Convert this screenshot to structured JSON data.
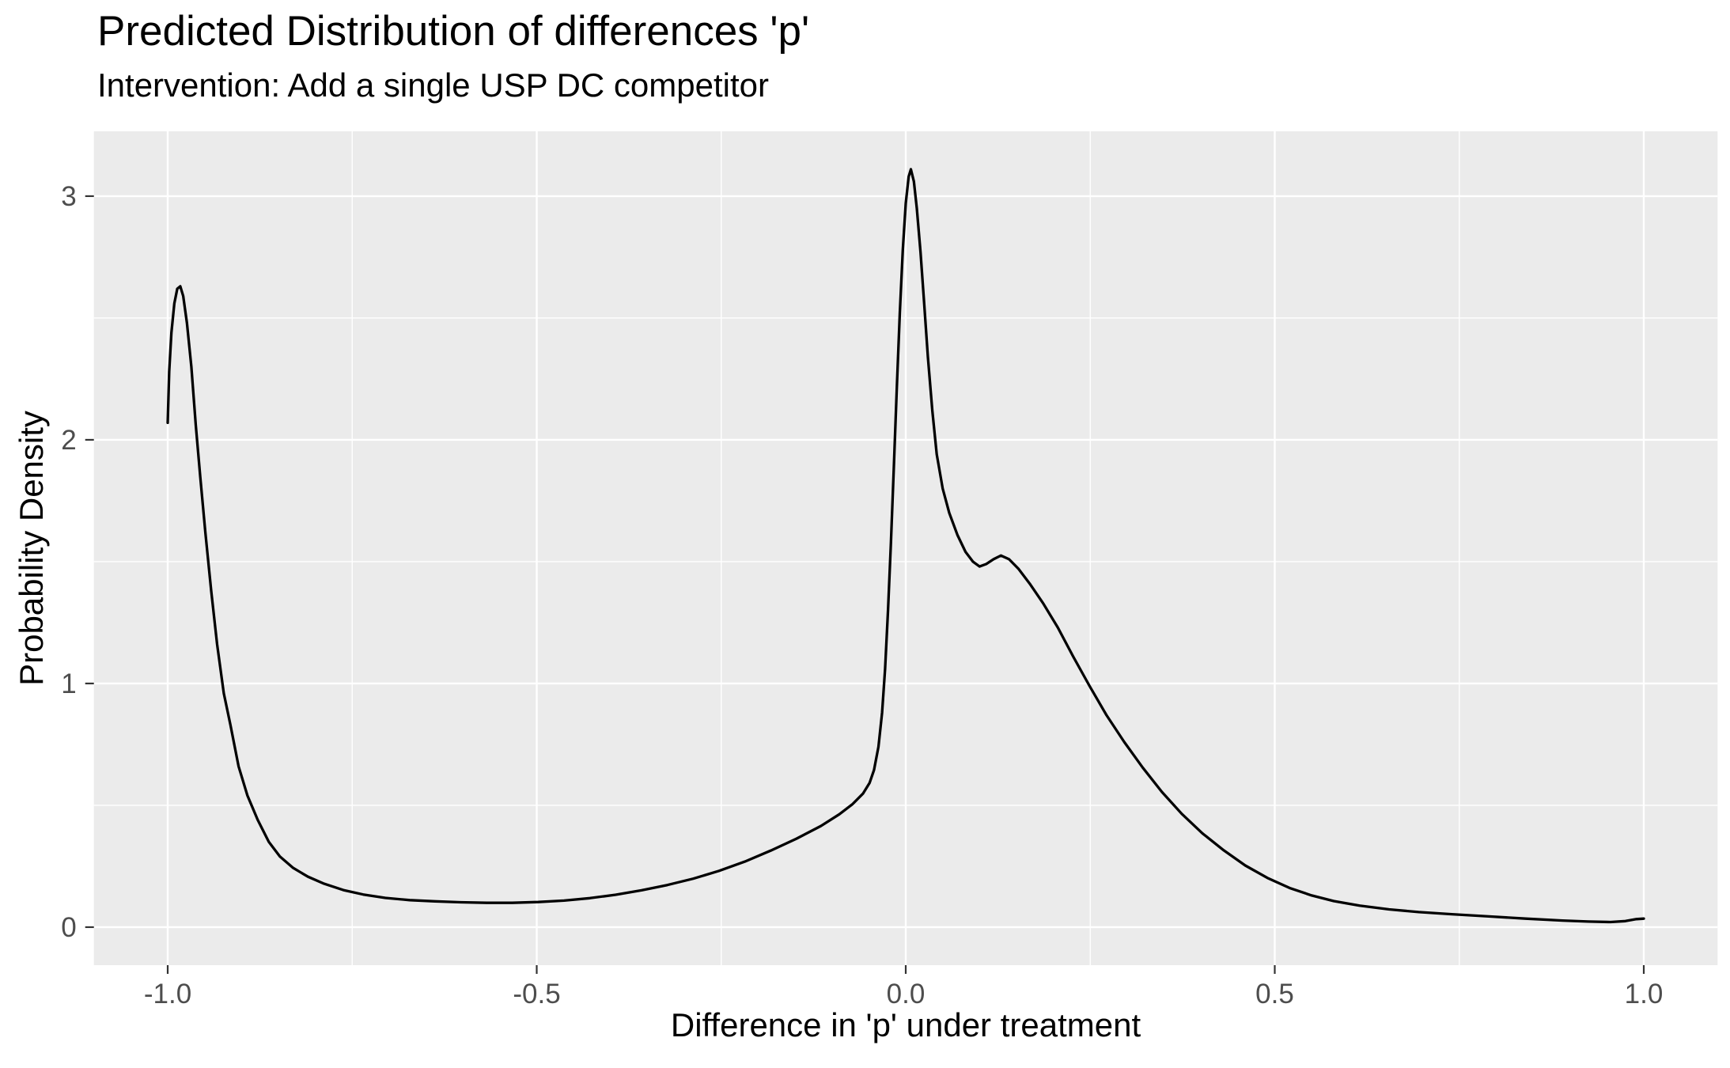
{
  "title": "Predicted Distribution of differences 'p'",
  "subtitle": "Intervention: Add a single USP DC competitor",
  "chart_data": {
    "type": "line",
    "title": "Predicted Distribution of differences 'p'",
    "subtitle": "Intervention: Add a single USP DC competitor",
    "xlabel": "Difference in 'p' under treatment",
    "ylabel": "Probability Density",
    "xlim": [
      -1.1,
      1.1
    ],
    "ylim": [
      -0.156,
      3.266
    ],
    "grid": true,
    "legend": "none",
    "x_ticks": {
      "values": [
        -1.0,
        -0.5,
        0.0,
        0.5,
        1.0
      ],
      "labels": [
        "-1.0",
        "-0.5",
        "0.0",
        "0.5",
        "1.0"
      ]
    },
    "y_ticks": {
      "values": [
        0,
        1,
        2,
        3
      ],
      "labels": [
        "0",
        "1",
        "2",
        "3"
      ]
    },
    "x_minor": [
      -0.75,
      -0.25,
      0.25,
      0.75
    ],
    "y_minor": [
      0.5,
      1.5,
      2.5
    ],
    "colors": {
      "panel_bg": "#EBEBEB",
      "grid": "#FFFFFF",
      "line": "#000000",
      "tick_text": "#4D4D4D",
      "tick_mark": "#333333",
      "title_text": "#000000"
    },
    "series": [
      {
        "name": "density",
        "points": [
          [
            -1.0,
            2.07
          ],
          [
            -0.998,
            2.28
          ],
          [
            -0.995,
            2.44
          ],
          [
            -0.991,
            2.56
          ],
          [
            -0.987,
            2.62
          ],
          [
            -0.983,
            2.63
          ],
          [
            -0.979,
            2.59
          ],
          [
            -0.974,
            2.48
          ],
          [
            -0.968,
            2.3
          ],
          [
            -0.962,
            2.06
          ],
          [
            -0.956,
            1.85
          ],
          [
            -0.949,
            1.62
          ],
          [
            -0.941,
            1.38
          ],
          [
            -0.933,
            1.16
          ],
          [
            -0.924,
            0.96
          ],
          [
            -0.915,
            0.83
          ],
          [
            -0.904,
            0.66
          ],
          [
            -0.892,
            0.54
          ],
          [
            -0.878,
            0.44
          ],
          [
            -0.863,
            0.35
          ],
          [
            -0.848,
            0.29
          ],
          [
            -0.83,
            0.243
          ],
          [
            -0.81,
            0.207
          ],
          [
            -0.788,
            0.178
          ],
          [
            -0.762,
            0.152
          ],
          [
            -0.735,
            0.134
          ],
          [
            -0.705,
            0.12
          ],
          [
            -0.672,
            0.111
          ],
          [
            -0.638,
            0.106
          ],
          [
            -0.603,
            0.102
          ],
          [
            -0.568,
            0.1
          ],
          [
            -0.533,
            0.1
          ],
          [
            -0.498,
            0.103
          ],
          [
            -0.463,
            0.109
          ],
          [
            -0.428,
            0.119
          ],
          [
            -0.393,
            0.133
          ],
          [
            -0.358,
            0.151
          ],
          [
            -0.323,
            0.173
          ],
          [
            -0.288,
            0.199
          ],
          [
            -0.253,
            0.231
          ],
          [
            -0.218,
            0.269
          ],
          [
            -0.183,
            0.314
          ],
          [
            -0.148,
            0.363
          ],
          [
            -0.115,
            0.415
          ],
          [
            -0.09,
            0.463
          ],
          [
            -0.072,
            0.505
          ],
          [
            -0.058,
            0.548
          ],
          [
            -0.049,
            0.592
          ],
          [
            -0.043,
            0.645
          ],
          [
            -0.037,
            0.74
          ],
          [
            -0.032,
            0.88
          ],
          [
            -0.028,
            1.06
          ],
          [
            -0.024,
            1.3
          ],
          [
            -0.02,
            1.58
          ],
          [
            -0.016,
            1.9
          ],
          [
            -0.012,
            2.22
          ],
          [
            -0.008,
            2.52
          ],
          [
            -0.004,
            2.78
          ],
          [
            0.0,
            2.97
          ],
          [
            0.004,
            3.08
          ],
          [
            0.007,
            3.11
          ],
          [
            0.011,
            3.06
          ],
          [
            0.015,
            2.95
          ],
          [
            0.02,
            2.77
          ],
          [
            0.025,
            2.56
          ],
          [
            0.03,
            2.34
          ],
          [
            0.036,
            2.12
          ],
          [
            0.042,
            1.94
          ],
          [
            0.05,
            1.8
          ],
          [
            0.059,
            1.7
          ],
          [
            0.07,
            1.61
          ],
          [
            0.081,
            1.54
          ],
          [
            0.091,
            1.5
          ],
          [
            0.1,
            1.48
          ],
          [
            0.109,
            1.49
          ],
          [
            0.119,
            1.51
          ],
          [
            0.129,
            1.525
          ],
          [
            0.14,
            1.51
          ],
          [
            0.153,
            1.47
          ],
          [
            0.168,
            1.41
          ],
          [
            0.186,
            1.33
          ],
          [
            0.206,
            1.23
          ],
          [
            0.227,
            1.11
          ],
          [
            0.249,
            0.99
          ],
          [
            0.272,
            0.87
          ],
          [
            0.296,
            0.76
          ],
          [
            0.321,
            0.655
          ],
          [
            0.347,
            0.555
          ],
          [
            0.374,
            0.465
          ],
          [
            0.402,
            0.385
          ],
          [
            0.431,
            0.315
          ],
          [
            0.46,
            0.253
          ],
          [
            0.49,
            0.202
          ],
          [
            0.52,
            0.161
          ],
          [
            0.55,
            0.13
          ],
          [
            0.58,
            0.107
          ],
          [
            0.615,
            0.088
          ],
          [
            0.655,
            0.073
          ],
          [
            0.695,
            0.062
          ],
          [
            0.74,
            0.053
          ],
          [
            0.79,
            0.044
          ],
          [
            0.84,
            0.035
          ],
          [
            0.89,
            0.027
          ],
          [
            0.925,
            0.023
          ],
          [
            0.955,
            0.021
          ],
          [
            0.975,
            0.025
          ],
          [
            0.99,
            0.033
          ],
          [
            1.0,
            0.035
          ]
        ]
      }
    ]
  }
}
